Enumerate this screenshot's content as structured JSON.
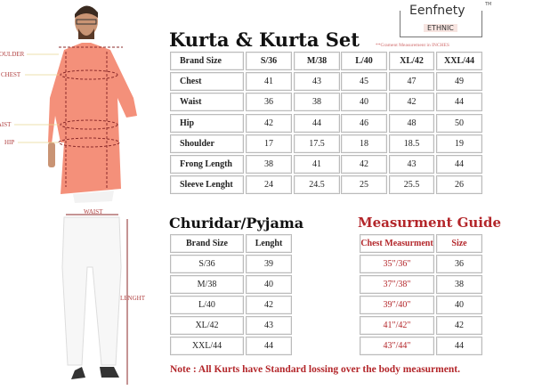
{
  "brand": {
    "name": "Eenfnety",
    "sub": "ETHNIC",
    "tm": "TM"
  },
  "kurta": {
    "title": "Kurta & Kurta Set",
    "note": "**Grament Measurement in  INCHES",
    "header": [
      "Brand Size",
      "S/36",
      "M/38",
      "L/40",
      "XL/42",
      "XXL/44"
    ],
    "rows": [
      [
        "Chest",
        "41",
        "43",
        "45",
        "47",
        "49"
      ],
      [
        "Waist",
        "36",
        "38",
        "40",
        "42",
        "44"
      ],
      [
        "Hip",
        "42",
        "44",
        "46",
        "48",
        "50"
      ],
      [
        "Shoulder",
        "17",
        "17.5",
        "18",
        "18.5",
        "19"
      ],
      [
        "Frong Length",
        "38",
        "41",
        "42",
        "43",
        "44"
      ],
      [
        "Sleeve Lenght",
        "24",
        "24.5",
        "25",
        "25.5",
        "26"
      ]
    ]
  },
  "pyjama": {
    "title": "Churidar/Pyjama",
    "header": [
      "Brand Size",
      "Lenght"
    ],
    "rows": [
      [
        "S/36",
        "39"
      ],
      [
        "M/38",
        "40"
      ],
      [
        "L/40",
        "42"
      ],
      [
        "XL/42",
        "43"
      ],
      [
        "XXL/44",
        "44"
      ]
    ]
  },
  "guide": {
    "title": "Measurment Guide",
    "header": [
      "Chest Measurment",
      "Size"
    ],
    "rows": [
      [
        "35\"/36\"",
        "36"
      ],
      [
        "37\"/38\"",
        "38"
      ],
      [
        "39\"/40\"",
        "40"
      ],
      [
        "41\"/42\"",
        "42"
      ],
      [
        "43\"/44\"",
        "44"
      ]
    ]
  },
  "footer_note": "Note : All Kurts have Standard lossing over the body measurment.",
  "figure_labels": {
    "shoulder": "SHOULDER",
    "chest": "CHEST",
    "waist": "WAIST",
    "hip": "HIP",
    "pyjama_waist": "WAIST",
    "length": "LENGHT"
  },
  "colors": {
    "accent_red": "#b3262a",
    "kurta": "#f4907a",
    "cell_border": "#bbbbbb"
  }
}
